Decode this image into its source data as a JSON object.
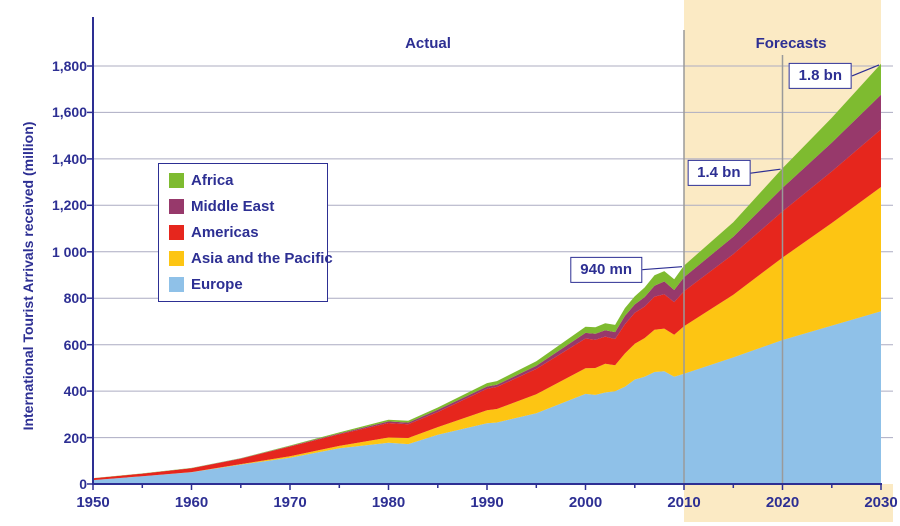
{
  "page": {
    "background": "#FFFFFF"
  },
  "chart_data": {
    "type": "area",
    "stacked": true,
    "title": "",
    "xlabel": "",
    "ylabel": "International Tourist Arrivals received (million)",
    "xlim": [
      1950,
      2030
    ],
    "ylim": [
      0,
      1800
    ],
    "grid": "horizontal",
    "legend_position": "upper-left-inside",
    "x": [
      1950,
      1955,
      1960,
      1965,
      1970,
      1975,
      1980,
      1982,
      1985,
      1990,
      1991,
      1995,
      2000,
      2001,
      2002,
      2003,
      2004,
      2005,
      2006,
      2007,
      2008,
      2009,
      2010,
      2015,
      2020,
      2025,
      2030
    ],
    "series": [
      {
        "name": "Europe",
        "color": "#8FC1E8",
        "values": [
          16.8,
          33,
          50.4,
          83.7,
          113,
          153.9,
          177.3,
          172,
          212,
          261.5,
          265,
          304.7,
          388,
          383.8,
          394,
          399,
          418.4,
          450,
          462.2,
          482.2,
          485.2,
          461.7,
          474.8,
          545,
          620,
          682,
          744
        ]
      },
      {
        "name": "Asia and the Pacific",
        "color": "#FDC513",
        "values": [
          0.2,
          0.4,
          0.9,
          2.1,
          6.2,
          10.2,
          23,
          26,
          32.9,
          55.9,
          58,
          82.1,
          110.4,
          115.7,
          124,
          112.2,
          143.4,
          154,
          166,
          182,
          184.1,
          180.9,
          204.9,
          270,
          355,
          442,
          535
        ]
      },
      {
        "name": "Americas",
        "color": "#E6261D",
        "values": [
          7.5,
          11.2,
          16.7,
          23.2,
          42.3,
          50,
          62.3,
          59,
          65.1,
          92.8,
          95,
          109,
          128.2,
          122.1,
          116.7,
          113.1,
          125.8,
          133.3,
          135.8,
          142.9,
          147.8,
          140.6,
          150.7,
          175,
          199,
          222,
          248
        ]
      },
      {
        "name": "Middle East",
        "color": "#97396B",
        "values": [
          0.2,
          0.4,
          0.6,
          1.2,
          1.9,
          3.5,
          7.1,
          7.5,
          9.6,
          9.6,
          9,
          13.7,
          24.1,
          25,
          27.6,
          30,
          36.3,
          36.3,
          40.9,
          46.7,
          55.2,
          52.4,
          60.3,
          75,
          101,
          124,
          149
        ]
      },
      {
        "name": "Africa",
        "color": "#7EBB30",
        "values": [
          0.5,
          0.8,
          0.8,
          1.4,
          2.4,
          4.7,
          7.2,
          7.5,
          9.7,
          14.8,
          16,
          18.7,
          26.2,
          28.3,
          29.5,
          30.7,
          33.4,
          34.8,
          41.4,
          45,
          44.4,
          46,
          49.9,
          62,
          85,
          107,
          134
        ]
      }
    ],
    "xticks": [
      1950,
      1960,
      1970,
      1980,
      1990,
      2000,
      2010,
      2020,
      2030
    ],
    "ytick_labels": [
      "0",
      "200",
      "400",
      "600",
      "800",
      "1 000",
      "1,200",
      "1,400",
      "1,600",
      "1,800"
    ],
    "regions": [
      {
        "label": "Actual",
        "start": 1950,
        "end": 2010
      },
      {
        "label": "Forecasts",
        "start": 2010,
        "end": 2030
      }
    ],
    "annotations": [
      {
        "label": "940 mn",
        "year": 2010,
        "value": 940
      },
      {
        "label": "1.4 bn",
        "year": 2020,
        "value": 1360
      },
      {
        "label": "1.8 bn",
        "year": 2030,
        "value": 1809
      }
    ],
    "colors": {
      "forecast_band": "#FBEAC4",
      "grid_line": "#ACACC2",
      "axis": "#2D2F93",
      "text": "#2D2F93",
      "forecast_vertical_line": "#9A9A9A"
    }
  }
}
